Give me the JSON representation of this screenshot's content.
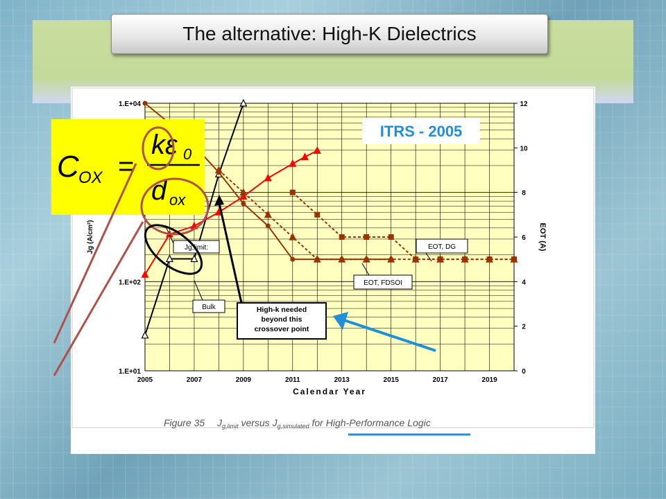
{
  "slide": {
    "title": "The alternative: High-K Dielectrics"
  },
  "formula": {
    "lhs": "C",
    "lhs_sub": "OX",
    "equals": "=",
    "num_k": "kε",
    "num_sub": "0",
    "den_d": "d",
    "den_sub": "ox",
    "bg_color": "#ffff00"
  },
  "chart_data": {
    "type": "line",
    "badge": "ITRS - 2005",
    "xlabel": "Calendar Year",
    "ylabel_left": "Jg (A/cm²)",
    "ylabel_right": "EOT (A)",
    "x_ticks": [
      "2005",
      "2007",
      "2009",
      "2011",
      "2013",
      "2015",
      "2017",
      "2019"
    ],
    "x_range": [
      2005,
      2020
    ],
    "y_left_ticks": [
      "1.E+04",
      "1.E+02",
      "1.E+01"
    ],
    "y_left_log_range": [
      1,
      4
    ],
    "y_right_ticks": [
      "12",
      "10",
      "8",
      "6",
      "4",
      "2",
      "0"
    ],
    "y_right_range": [
      0,
      12
    ],
    "grid": true,
    "series": [
      {
        "name": "Bulk",
        "axis": "left",
        "color": "#000000",
        "x": [
          2005,
          2006,
          2007,
          2008,
          2009
        ],
        "y": [
          25,
          180,
          180,
          1600,
          10000
        ]
      },
      {
        "name": "Jg,limit",
        "axis": "left",
        "color": "#ff0000",
        "x": [
          2005,
          2006,
          2007,
          2008,
          2009,
          2010,
          2011,
          2011.5,
          2012
        ],
        "y": [
          120,
          340,
          420,
          600,
          900,
          1450,
          2100,
          2500,
          2950
        ]
      },
      {
        "name": "EOT, FDSOI",
        "axis": "right",
        "color": "#993300",
        "x": [
          2005,
          2006,
          2007,
          2008,
          2009,
          2010,
          2011,
          2012,
          2013,
          2014,
          2015
        ],
        "y": [
          12,
          11.1,
          10.1,
          8.9,
          7.5,
          6.5,
          5,
          5,
          5,
          5,
          5
        ]
      },
      {
        "name": "EOT, DG",
        "axis": "right",
        "color": "#993300",
        "x": [
          2008,
          2009,
          2010,
          2011,
          2012,
          2013,
          2014,
          2015,
          2016,
          2017,
          2018,
          2019,
          2020
        ],
        "y": [
          9,
          8,
          7,
          6,
          5,
          5,
          5,
          5,
          5,
          5,
          5,
          5,
          5
        ]
      },
      {
        "name": "EOT",
        "axis": "right",
        "color": "#993300",
        "x": [
          2011,
          2012,
          2013,
          2014,
          2015,
          2016,
          2017,
          2018,
          2019,
          2020
        ],
        "y": [
          8,
          7,
          6,
          6,
          6,
          5,
          5,
          5,
          5,
          5
        ]
      }
    ],
    "annotations": {
      "jg_limit": "Jg,limit:",
      "bulk": "Bulk",
      "eot_dg": "EOT, DG",
      "eot_fdsoi": "EOT, FDSOI",
      "crossover": [
        "High-k needed",
        "beyond this",
        "crossover point"
      ]
    },
    "caption": {
      "prefix": "Figure 35",
      "body": "J",
      "body_sub": "g,limit",
      "versus": " versus J",
      "versus_sub": "g,simulated",
      "for": " for ",
      "highlight": "High-Performance Logic"
    }
  }
}
